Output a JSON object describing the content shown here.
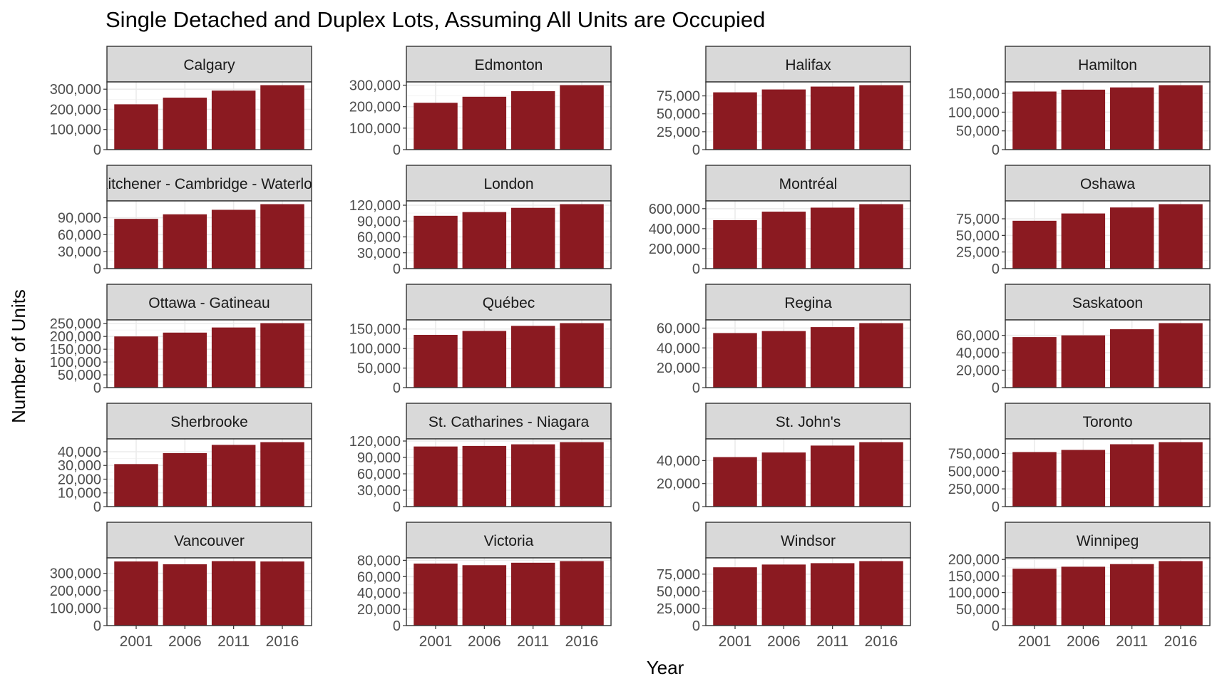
{
  "title": "Single Detached and Duplex Lots, Assuming All Units are Occupied",
  "xlabel": "Year",
  "ylabel": "Number of Units",
  "colors": {
    "bar": "#8B1A21",
    "strip": "#D9D9D9",
    "grid": "#EBEBEB",
    "frame": "#333333"
  },
  "chart_data": {
    "type": "bar",
    "facet_layout": "5 rows x 4 columns, free y scales",
    "grid": true,
    "categories": [
      "2001",
      "2006",
      "2011",
      "2016"
    ],
    "panels": [
      {
        "name": "Calgary",
        "values": [
          225000,
          258000,
          293000,
          320000
        ],
        "yticks": [
          0,
          100000,
          200000,
          300000
        ],
        "ylim": [
          0,
          336000
        ]
      },
      {
        "name": "Edmonton",
        "values": [
          218000,
          246000,
          272000,
          300000
        ],
        "yticks": [
          0,
          100000,
          200000,
          300000
        ],
        "ylim": [
          0,
          315000
        ]
      },
      {
        "name": "Halifax",
        "values": [
          80000,
          84000,
          88000,
          90000
        ],
        "yticks": [
          0,
          25000,
          50000,
          75000
        ],
        "ylim": [
          0,
          94500
        ]
      },
      {
        "name": "Hamilton",
        "values": [
          155000,
          160000,
          166000,
          172000
        ],
        "yticks": [
          0,
          50000,
          100000,
          150000
        ],
        "ylim": [
          0,
          180600
        ]
      },
      {
        "name": "Kitchener - Cambridge - Waterloo",
        "values": [
          88000,
          96000,
          104000,
          114000
        ],
        "yticks": [
          0,
          30000,
          60000,
          90000
        ],
        "ylim": [
          0,
          119700
        ]
      },
      {
        "name": "London",
        "values": [
          100000,
          107000,
          115000,
          122000
        ],
        "yticks": [
          0,
          30000,
          60000,
          90000,
          120000
        ],
        "ylim": [
          0,
          128100
        ]
      },
      {
        "name": "Montréal",
        "values": [
          485000,
          570000,
          610000,
          645000
        ],
        "yticks": [
          0,
          200000,
          400000,
          600000
        ],
        "ylim": [
          0,
          677250
        ]
      },
      {
        "name": "Oshawa",
        "values": [
          72000,
          83000,
          92000,
          97000
        ],
        "yticks": [
          0,
          25000,
          50000,
          75000
        ],
        "ylim": [
          0,
          101850
        ]
      },
      {
        "name": "Ottawa - Gatineau",
        "values": [
          200000,
          215000,
          235000,
          252000
        ],
        "yticks": [
          0,
          50000,
          100000,
          150000,
          200000,
          250000
        ],
        "ylim": [
          0,
          264600
        ]
      },
      {
        "name": "Québec",
        "values": [
          135000,
          145000,
          158000,
          165000
        ],
        "yticks": [
          0,
          50000,
          100000,
          150000
        ],
        "ylim": [
          0,
          173250
        ]
      },
      {
        "name": "Regina",
        "values": [
          55000,
          57000,
          61000,
          65000
        ],
        "yticks": [
          0,
          20000,
          40000,
          60000
        ],
        "ylim": [
          0,
          68250
        ]
      },
      {
        "name": "Saskatoon",
        "values": [
          58000,
          60000,
          67000,
          74000
        ],
        "yticks": [
          0,
          20000,
          40000,
          60000
        ],
        "ylim": [
          0,
          77700
        ]
      },
      {
        "name": "Sherbrooke",
        "values": [
          31000,
          39000,
          45000,
          47000
        ],
        "yticks": [
          0,
          10000,
          20000,
          30000,
          40000
        ],
        "ylim": [
          0,
          49350
        ]
      },
      {
        "name": "St. Catharines - Niagara",
        "values": [
          110000,
          111000,
          114000,
          118000
        ],
        "yticks": [
          0,
          30000,
          60000,
          90000,
          120000
        ],
        "ylim": [
          0,
          123900
        ]
      },
      {
        "name": "St. John's",
        "values": [
          43000,
          47000,
          53000,
          56000
        ],
        "yticks": [
          0,
          20000,
          40000
        ],
        "ylim": [
          0,
          58800
        ]
      },
      {
        "name": "Toronto",
        "values": [
          770000,
          800000,
          880000,
          910000
        ],
        "yticks": [
          0,
          250000,
          500000,
          750000
        ],
        "ylim": [
          0,
          955500
        ]
      },
      {
        "name": "Vancouver",
        "values": [
          368000,
          352000,
          370000,
          368000
        ],
        "yticks": [
          0,
          100000,
          200000,
          300000
        ],
        "ylim": [
          0,
          388500
        ]
      },
      {
        "name": "Victoria",
        "values": [
          76000,
          74000,
          77000,
          79000
        ],
        "yticks": [
          0,
          20000,
          40000,
          60000,
          80000
        ],
        "ylim": [
          0,
          82950
        ]
      },
      {
        "name": "Windsor",
        "values": [
          85000,
          89000,
          91000,
          94000
        ],
        "yticks": [
          0,
          25000,
          50000,
          75000
        ],
        "ylim": [
          0,
          98700
        ]
      },
      {
        "name": "Winnipeg",
        "values": [
          172000,
          178000,
          186000,
          195000
        ],
        "yticks": [
          0,
          50000,
          100000,
          150000,
          200000
        ],
        "ylim": [
          0,
          204750
        ]
      }
    ]
  }
}
